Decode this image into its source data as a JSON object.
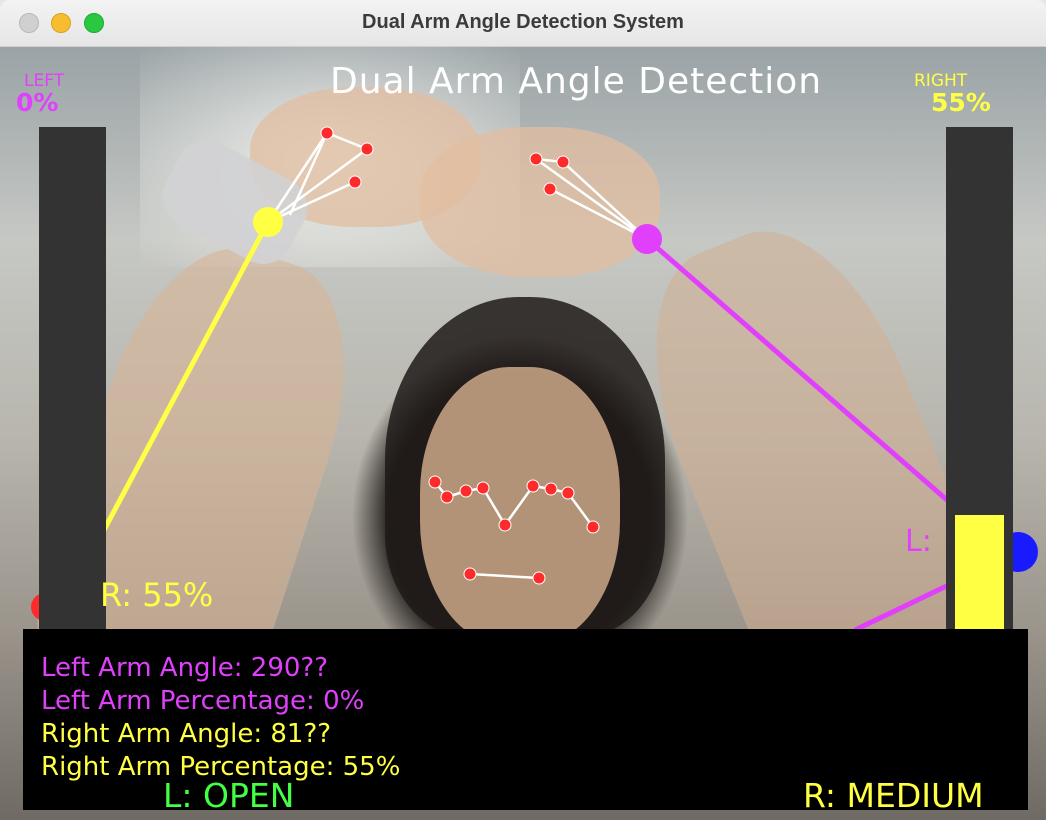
{
  "window": {
    "title": "Dual Arm Angle Detection System"
  },
  "overlay": {
    "heading": "Dual Arm Angle Detection",
    "left_label": "LEFT",
    "left_percent": "0%",
    "right_label": "RIGHT",
    "right_percent": "55%",
    "right_bar_fill": 0.55,
    "left_bar_fill": 0.0,
    "side_label_left": "L:",
    "side_label_right": "R: 55%"
  },
  "info": {
    "left_angle": "Left Arm Angle: 290??",
    "left_percentage": "Left Arm Percentage: 0%",
    "right_angle": "Right Arm Angle: 81??",
    "right_percentage": "Right Arm Percentage: 55%",
    "left_state": "L: OPEN",
    "right_state": "R: MEDIUM"
  },
  "colors": {
    "left": "#e040fb",
    "right": "#ffff44",
    "open": "#44ff44",
    "landmark": "#ff2a2a",
    "connector": "#ffffff"
  }
}
